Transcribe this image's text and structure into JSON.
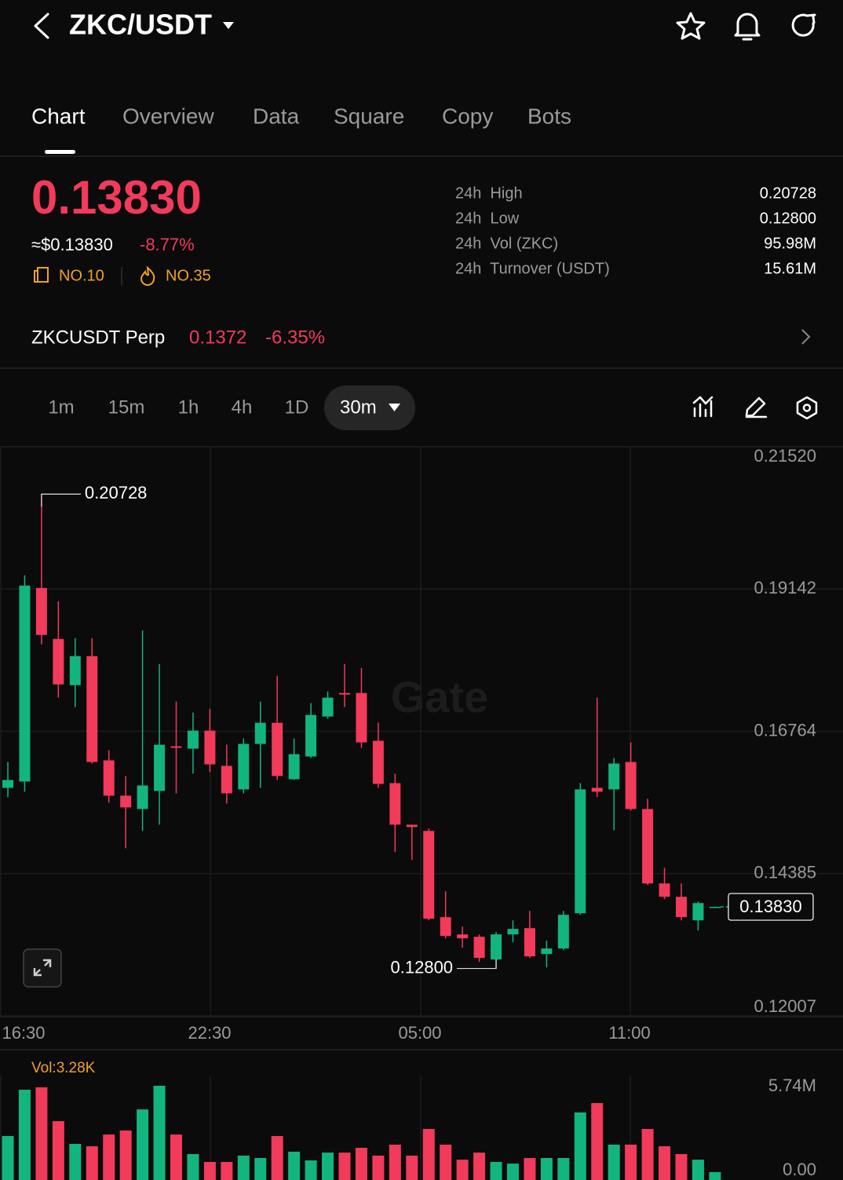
{
  "header": {
    "pair": "ZKC/USDT"
  },
  "tabs": [
    "Chart",
    "Overview",
    "Data",
    "Square",
    "Copy",
    "Bots"
  ],
  "price": {
    "last": "0.13830",
    "usd": "≈$0.13830",
    "change": "-8.77%",
    "rank_a": "NO.10",
    "rank_b": "NO.35"
  },
  "stats": [
    {
      "label": "24h  High",
      "value": "0.20728"
    },
    {
      "label": "24h  Low",
      "value": "0.12800"
    },
    {
      "label": "24h  Vol (ZKC)",
      "value": "95.98M"
    },
    {
      "label": "24h  Turnover (USDT)",
      "value": "15.61M"
    }
  ],
  "perp": {
    "name": "ZKCUSDT Perp",
    "price": "0.1372",
    "change": "-6.35%"
  },
  "intervals": [
    "1m",
    "15m",
    "1h",
    "4h",
    "1D"
  ],
  "active_interval": "30m",
  "watermark": "Gate",
  "chart_data": {
    "type": "candlestick",
    "up_color": "#13b57e",
    "down_color": "#f23a5b",
    "x_labels": [
      "16:30",
      "22:30",
      "05:00",
      "11:00"
    ],
    "open": [
      0.15819,
      0.15924,
      0.1916,
      0.18308,
      0.17535,
      0.1802,
      0.16278,
      0.15688,
      0.15465,
      0.15767,
      0.16513,
      0.16474,
      0.16775,
      0.16186,
      0.15793,
      0.16553,
      0.16906,
      0.15963,
      0.16343,
      0.17011,
      0.17404,
      0.17404,
      0.16605,
      0.15898,
      0.15203,
      0.15099,
      0.13658,
      0.13369,
      0.1333,
      0.1295,
      0.13369,
      0.13474,
      0.13042,
      0.13134,
      0.13723,
      0.15819,
      0.15793,
      0.16251,
      0.15465,
      0.14221,
      0.13998,
      0.13605,
      0.1382
    ],
    "high": [
      0.16251,
      0.19369,
      0.20728,
      0.18937,
      0.18321,
      0.18321,
      0.16448,
      0.16016,
      0.18452,
      0.17889,
      0.1726,
      0.17077,
      0.17142,
      0.1654,
      0.16644,
      0.1726,
      0.17692,
      0.16644,
      0.17234,
      0.1743,
      0.17889,
      0.17823,
      0.16906,
      0.16055,
      0.15203,
      0.15138,
      0.1409,
      0.135,
      0.13369,
      0.13409,
      0.13605,
      0.13762,
      0.13265,
      0.13762,
      0.15898,
      0.17326,
      0.16317,
      0.16579,
      0.15636,
      0.14483,
      0.14221,
      0.1392,
      0.13835
    ],
    "low": [
      0.15662,
      0.15754,
      0.18216,
      0.17326,
      0.17168,
      0.16225,
      0.1557,
      0.1481,
      0.15099,
      0.15203,
      0.15727,
      0.16055,
      0.16081,
      0.15557,
      0.15727,
      0.15819,
      0.1595,
      0.1595,
      0.16317,
      0.16972,
      0.17168,
      0.16487,
      0.15819,
      0.14745,
      0.14614,
      0.13605,
      0.13304,
      0.13147,
      0.12911,
      0.128,
      0.13238,
      0.12976,
      0.12819,
      0.13107,
      0.13697,
      0.15662,
      0.15112,
      0.15439,
      0.14195,
      0.13959,
      0.13605,
      0.13435,
      0.13815
    ],
    "close": [
      0.1595,
      0.19199,
      0.18374,
      0.17548,
      0.1802,
      0.16251,
      0.15688,
      0.15492,
      0.15858,
      0.1654,
      0.16487,
      0.16775,
      0.16212,
      0.15727,
      0.16553,
      0.16906,
      0.16016,
      0.16382,
      0.17037,
      0.17326,
      0.17378,
      0.16579,
      0.15885,
      0.15203,
      0.15164,
      0.13631,
      0.13343,
      0.13304,
      0.12976,
      0.13369,
      0.13461,
      0.13003,
      0.13134,
      0.13697,
      0.15793,
      0.15754,
      0.16225,
      0.15465,
      0.14221,
      0.13998,
      0.13658,
      0.13893,
      0.1383
    ],
    "ylim": [
      0.12007,
      0.2152
    ],
    "yticks": [
      {
        "value": 0.2152,
        "label": "0.21520"
      },
      0.19142,
      0.16764,
      0.14385,
      0.12007
    ],
    "grid": true,
    "high_label": 0.20728,
    "low_label": {
      "value": 0.128,
      "label": "0.12800"
    },
    "last_label": {
      "value": 0.1383,
      "label": "0.13830"
    },
    "volume": {
      "label": "Vol:3.28K",
      "values": [
        2.4,
        5.48,
        5.64,
        3.39,
        1.88,
        1.72,
        2.5,
        2.77,
        4.17,
        5.74,
        2.5,
        1.2,
        0.68,
        0.68,
        1.1,
        0.94,
        2.4,
        1.36,
        0.78,
        1.3,
        1.3,
        1.62,
        1.1,
        1.83,
        1.1,
        2.87,
        1.83,
        0.83,
        1.3,
        0.68,
        0.57,
        0.94,
        0.94,
        0.94,
        3.97,
        4.59,
        1.83,
        1.83,
        2.87,
        1.72,
        1.2,
        0.83,
        0.00328
      ],
      "ylim": [
        0,
        5.74
      ],
      "yticks": [
        {
          "value": 5.74,
          "label": "5.74M"
        },
        {
          "value": 0,
          "label": "0.00"
        }
      ]
    }
  }
}
